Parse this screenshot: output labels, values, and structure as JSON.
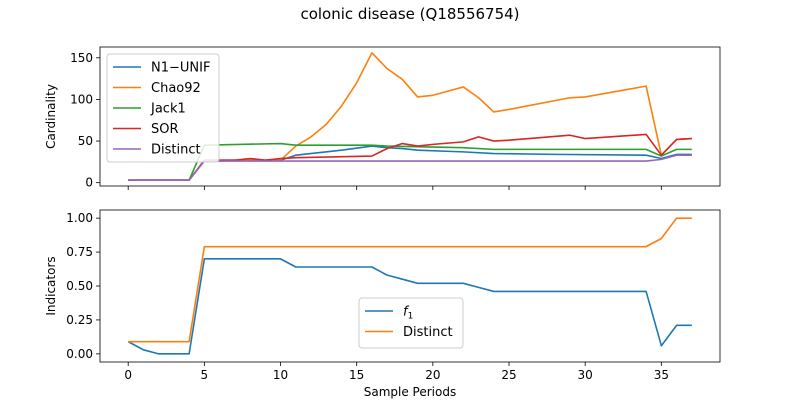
{
  "figure": {
    "title": "colonic disease (Q18556754)"
  },
  "chart_data": [
    {
      "type": "line",
      "ylabel": "Cardinality",
      "xlabel": "",
      "xlim": [
        -1.85,
        38.85
      ],
      "ylim": [
        -4,
        163
      ],
      "xticks": [
        0,
        5,
        10,
        15,
        20,
        25,
        30,
        35
      ],
      "yticks": [
        0,
        50,
        100,
        150
      ],
      "show_xtick_labels": false,
      "grid": false,
      "legend": "upper-left",
      "series": [
        {
          "name": "N1−UNIF",
          "color": "#1f77b4",
          "x": [
            0,
            4,
            5,
            10,
            11,
            14,
            16,
            17,
            18,
            19,
            22,
            24,
            28,
            34,
            35,
            36,
            37
          ],
          "y": [
            3,
            3,
            27,
            27,
            33,
            39,
            44,
            42,
            41,
            39,
            37,
            35,
            34,
            33,
            29,
            34,
            34
          ]
        },
        {
          "name": "Chao92",
          "color": "#ff7f0e",
          "x": [
            0,
            4,
            5,
            6,
            7,
            8,
            9,
            10,
            11,
            12,
            13,
            14,
            15,
            16,
            17,
            18,
            19,
            20,
            21,
            22,
            23,
            24,
            25,
            29,
            30,
            34,
            35,
            36,
            37
          ],
          "y": [
            3,
            3,
            26,
            26,
            27,
            27,
            27,
            27,
            44,
            55,
            70,
            92,
            120,
            156,
            137,
            124,
            103,
            105,
            110,
            115,
            102,
            85,
            88,
            102,
            103,
            116,
            33,
            52,
            53
          ]
        },
        {
          "name": "Jack1",
          "color": "#2ca02c",
          "x": [
            0,
            4,
            5,
            10,
            11,
            16,
            17,
            22,
            24,
            34,
            35,
            36,
            37
          ],
          "y": [
            3,
            3,
            45,
            47,
            45,
            45,
            44,
            42,
            40,
            40,
            32,
            40,
            40
          ]
        },
        {
          "name": "SOR",
          "color": "#d62728",
          "x": [
            0,
            4,
            5,
            7,
            8,
            9,
            10,
            11,
            16,
            17,
            18,
            19,
            20,
            22,
            23,
            24,
            25,
            29,
            30,
            34,
            35,
            36,
            37
          ],
          "y": [
            3,
            3,
            27,
            27,
            29,
            27,
            29,
            30,
            32,
            41,
            47,
            44,
            46,
            49,
            55,
            50,
            51,
            57,
            53,
            58,
            33,
            52,
            53
          ]
        },
        {
          "name": "Distinct",
          "color": "#9467bd",
          "x": [
            0,
            4,
            5,
            34,
            35,
            36,
            37
          ],
          "y": [
            3,
            3,
            26,
            26,
            28,
            33,
            33
          ]
        }
      ]
    },
    {
      "type": "line",
      "ylabel": "Indicators",
      "xlabel": "Sample Periods",
      "xlim": [
        -1.85,
        38.85
      ],
      "ylim": [
        -0.06,
        1.06
      ],
      "xticks": [
        0,
        5,
        10,
        15,
        20,
        25,
        30,
        35
      ],
      "yticks": [
        0.0,
        0.25,
        0.5,
        0.75,
        1.0
      ],
      "ytick_labels": [
        "0.00",
        "0.25",
        "0.50",
        "0.75",
        "1.00"
      ],
      "show_xtick_labels": true,
      "grid": false,
      "legend": "lower-center",
      "series": [
        {
          "name": "f1",
          "name_main": "f",
          "name_sub": "1",
          "color": "#1f77b4",
          "x": [
            0,
            1,
            2,
            3,
            4,
            5,
            6,
            7,
            8,
            9,
            10,
            11,
            12,
            13,
            14,
            15,
            16,
            17,
            18,
            19,
            20,
            21,
            22,
            23,
            24,
            34,
            35,
            36,
            37
          ],
          "y": [
            0.09,
            0.03,
            0.0,
            0.0,
            0.0,
            0.7,
            0.7,
            0.7,
            0.7,
            0.7,
            0.7,
            0.64,
            0.64,
            0.64,
            0.64,
            0.64,
            0.64,
            0.58,
            0.55,
            0.52,
            0.52,
            0.52,
            0.52,
            0.49,
            0.46,
            0.46,
            0.06,
            0.21,
            0.21
          ]
        },
        {
          "name": "Distinct",
          "color": "#ff7f0e",
          "x": [
            0,
            4,
            5,
            34,
            35,
            36,
            37
          ],
          "y": [
            0.09,
            0.09,
            0.79,
            0.79,
            0.85,
            1.0,
            1.0
          ]
        }
      ]
    }
  ]
}
